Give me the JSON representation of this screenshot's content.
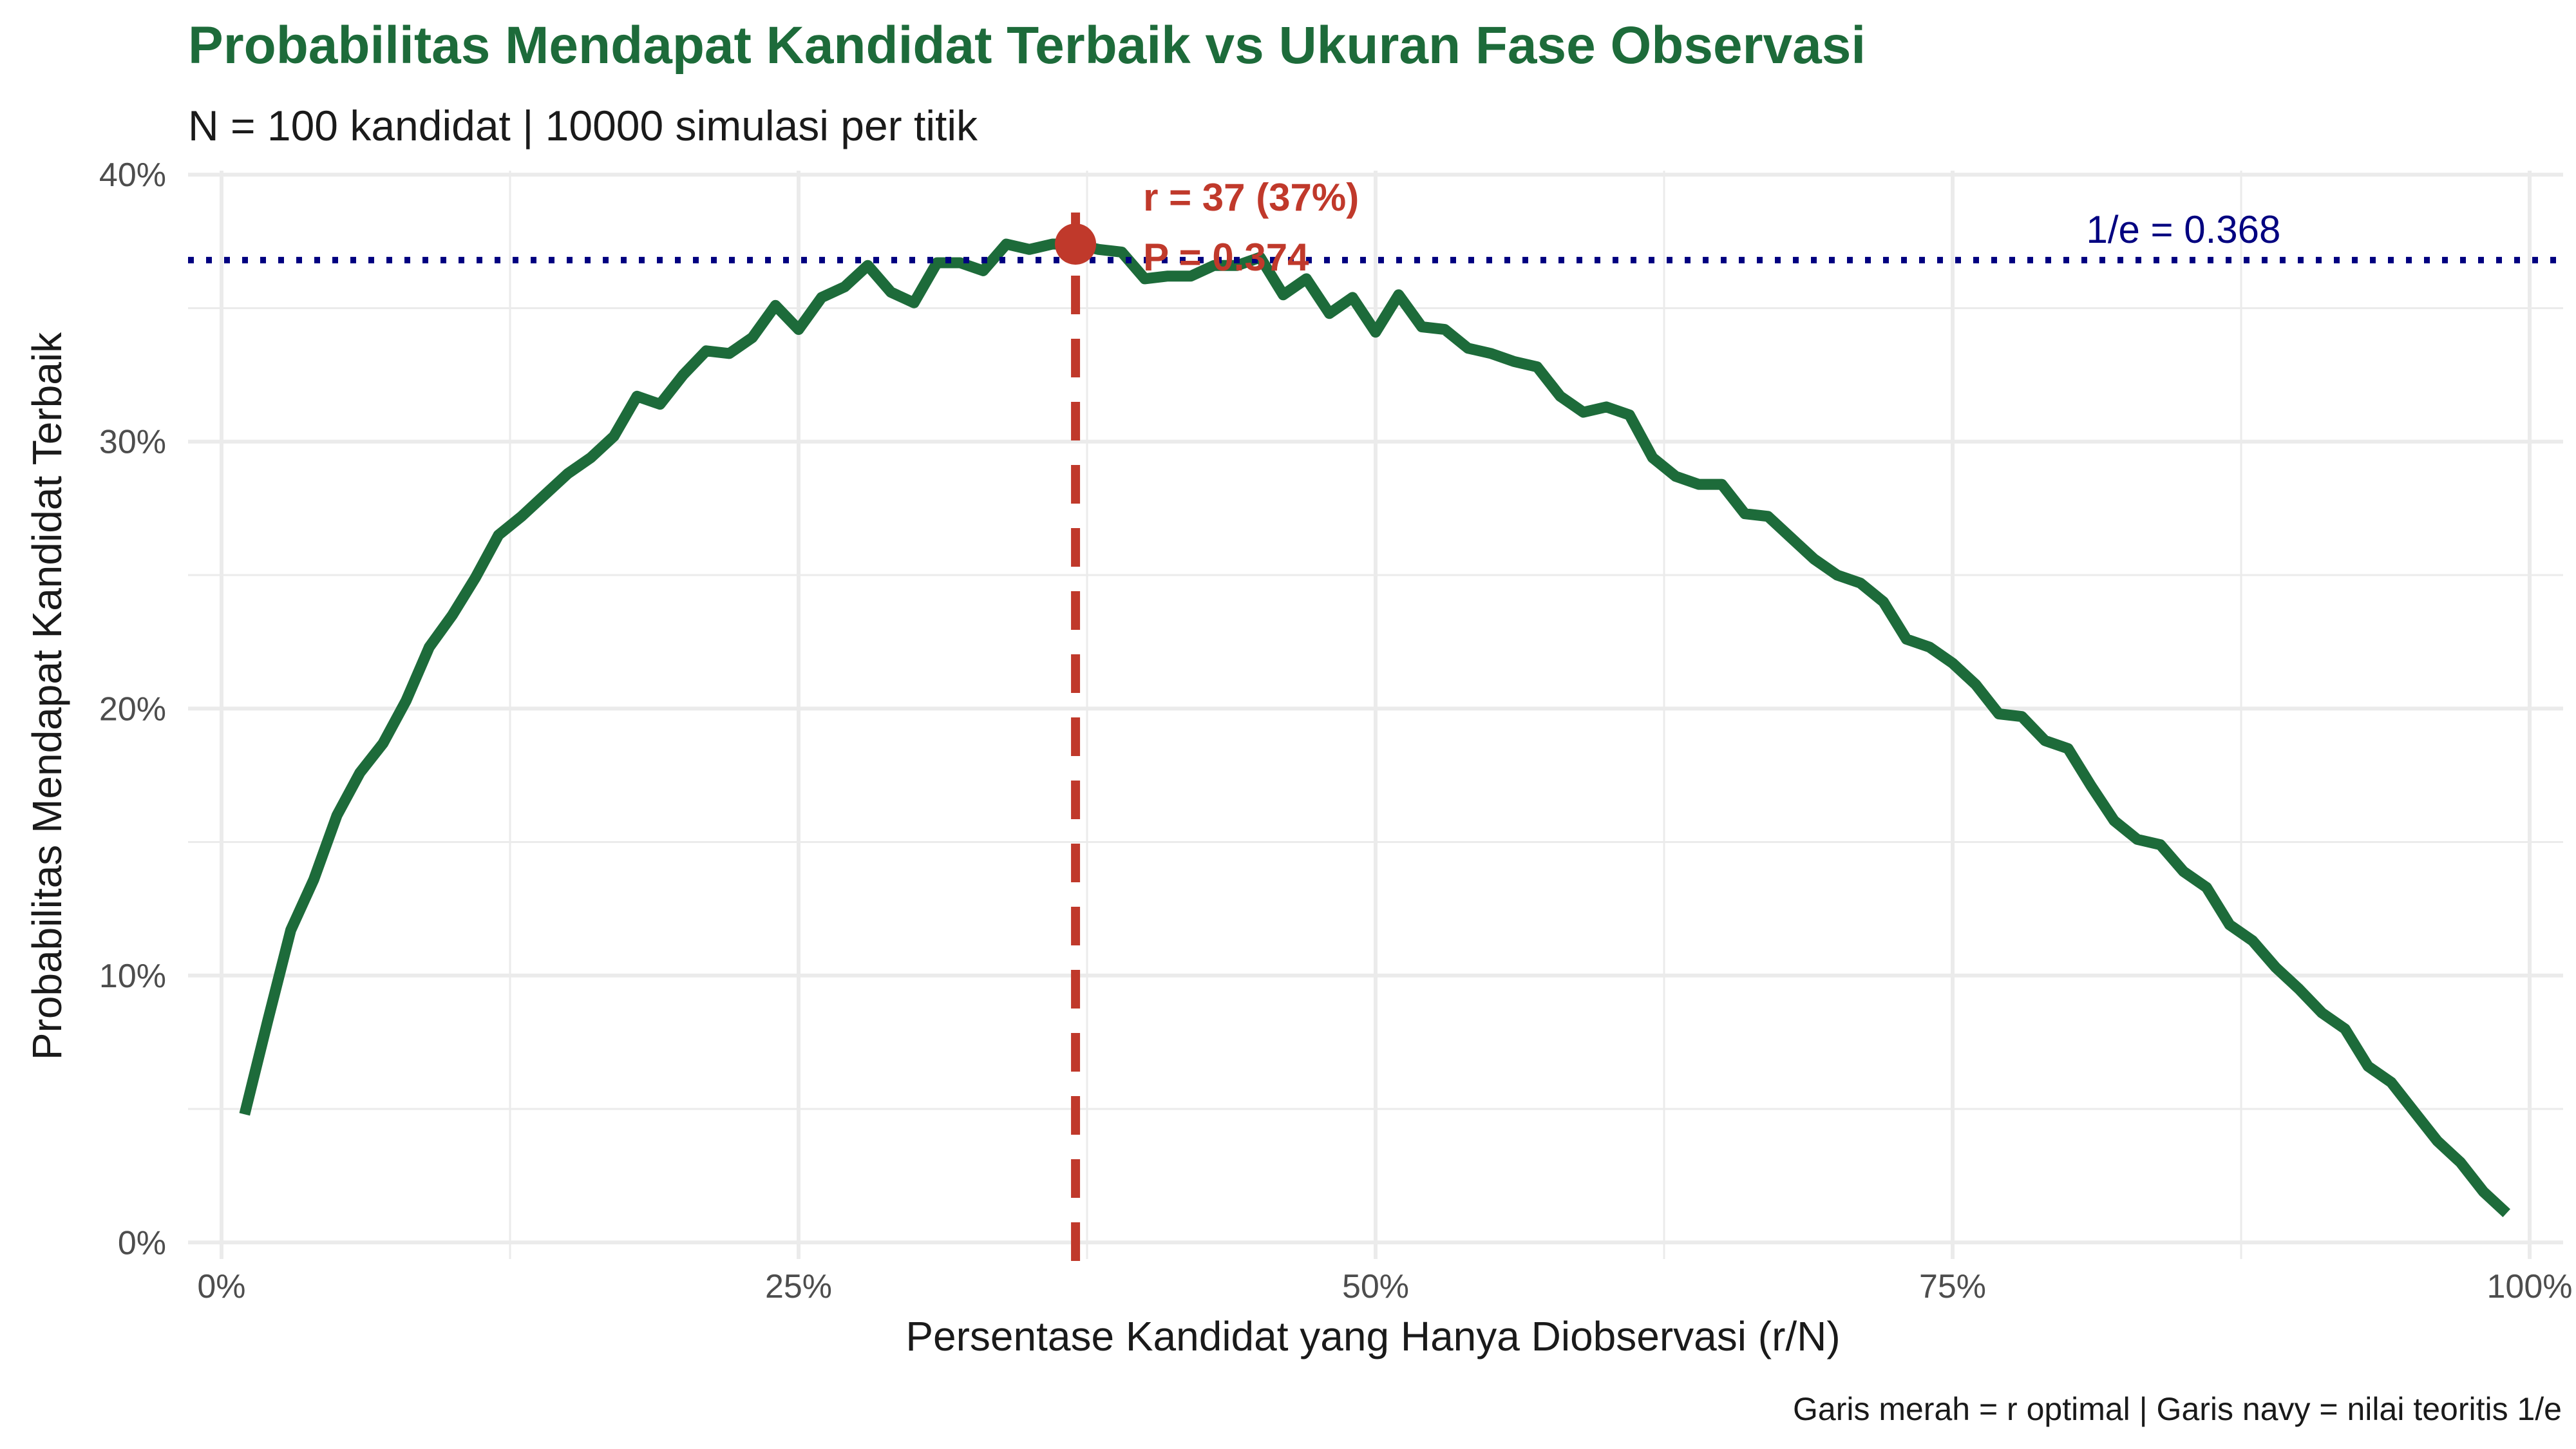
{
  "chart_data": {
    "type": "line",
    "title": "Probabilitas Mendapat Kandidat Terbaik vs Ukuran Fase Observasi",
    "subtitle": "N = 100 kandidat | 10000 simulasi per titik",
    "xlabel": "Persentase Kandidat yang Hanya Diobservasi (r/N)",
    "ylabel": "Probabilitas Mendapat Kandidat Terbaik",
    "caption": "Garis merah = r optimal | Garis navy = nilai teoritis 1/e",
    "xlim": [
      -0.0145,
      1.0145
    ],
    "ylim": [
      -0.0062,
      0.4015
    ],
    "x_ticks": [
      0,
      0.25,
      0.5,
      0.75,
      1.0
    ],
    "x_tick_labels": [
      "0%",
      "25%",
      "50%",
      "75%",
      "100%"
    ],
    "y_ticks": [
      0,
      0.1,
      0.2,
      0.3,
      0.4
    ],
    "y_tick_labels": [
      "0%",
      "10%",
      "20%",
      "30%",
      "40%"
    ],
    "grid": true,
    "colors": {
      "line": "#1d6b3a",
      "optimal": "#c0392b",
      "theory": "#000080",
      "title": "#1d6b3a",
      "grid": "#ebebeb"
    },
    "x": [
      0.01,
      0.02,
      0.03,
      0.04,
      0.05,
      0.06,
      0.07,
      0.08,
      0.09,
      0.1,
      0.11,
      0.12,
      0.13,
      0.14,
      0.15,
      0.16,
      0.17,
      0.18,
      0.19,
      0.2,
      0.21,
      0.22,
      0.23,
      0.24,
      0.25,
      0.26,
      0.27,
      0.28,
      0.29,
      0.3,
      0.31,
      0.32,
      0.33,
      0.34,
      0.35,
      0.36,
      0.37,
      0.38,
      0.39,
      0.4,
      0.41,
      0.42,
      0.43,
      0.44,
      0.45,
      0.46,
      0.47,
      0.48,
      0.49,
      0.5,
      0.51,
      0.52,
      0.53,
      0.54,
      0.55,
      0.56,
      0.57,
      0.58,
      0.59,
      0.6,
      0.61,
      0.62,
      0.63,
      0.64,
      0.65,
      0.66,
      0.67,
      0.68,
      0.69,
      0.7,
      0.71,
      0.72,
      0.73,
      0.74,
      0.75,
      0.76,
      0.77,
      0.78,
      0.79,
      0.8,
      0.81,
      0.82,
      0.83,
      0.84,
      0.85,
      0.86,
      0.87,
      0.88,
      0.89,
      0.9,
      0.91,
      0.92,
      0.93,
      0.94,
      0.95,
      0.96,
      0.97,
      0.98,
      0.99
    ],
    "series": [
      {
        "values": [
          0.048,
          0.083,
          0.117,
          0.136,
          0.16,
          0.176,
          0.187,
          0.203,
          0.223,
          0.235,
          0.249,
          0.265,
          0.272,
          0.28,
          0.288,
          0.294,
          0.302,
          0.317,
          0.314,
          0.325,
          0.334,
          0.333,
          0.339,
          0.351,
          0.342,
          0.354,
          0.358,
          0.366,
          0.356,
          0.352,
          0.367,
          0.367,
          0.364,
          0.374,
          0.372,
          0.374,
          0.374,
          0.372,
          0.371,
          0.361,
          0.362,
          0.362,
          0.366,
          0.366,
          0.369,
          0.355,
          0.361,
          0.348,
          0.354,
          0.341,
          0.355,
          0.343,
          0.342,
          0.335,
          0.333,
          0.33,
          0.328,
          0.317,
          0.311,
          0.313,
          0.31,
          0.294,
          0.287,
          0.284,
          0.284,
          0.273,
          0.272,
          0.264,
          0.256,
          0.25,
          0.247,
          0.24,
          0.226,
          0.223,
          0.217,
          0.209,
          0.198,
          0.197,
          0.188,
          0.185,
          0.171,
          0.158,
          0.151,
          0.149,
          0.139,
          0.133,
          0.119,
          0.113,
          0.103,
          0.095,
          0.086,
          0.08,
          0.066,
          0.06,
          0.049,
          0.038,
          0.03,
          0.019,
          0.011
        ]
      }
    ],
    "optimal": {
      "x": 0.37,
      "y": 0.374,
      "label_r": "r = 37 (37%)",
      "label_p": "P = 0.374"
    },
    "theory": {
      "y": 0.368,
      "label": "1/e = 0.368",
      "label_x": 0.85
    }
  }
}
